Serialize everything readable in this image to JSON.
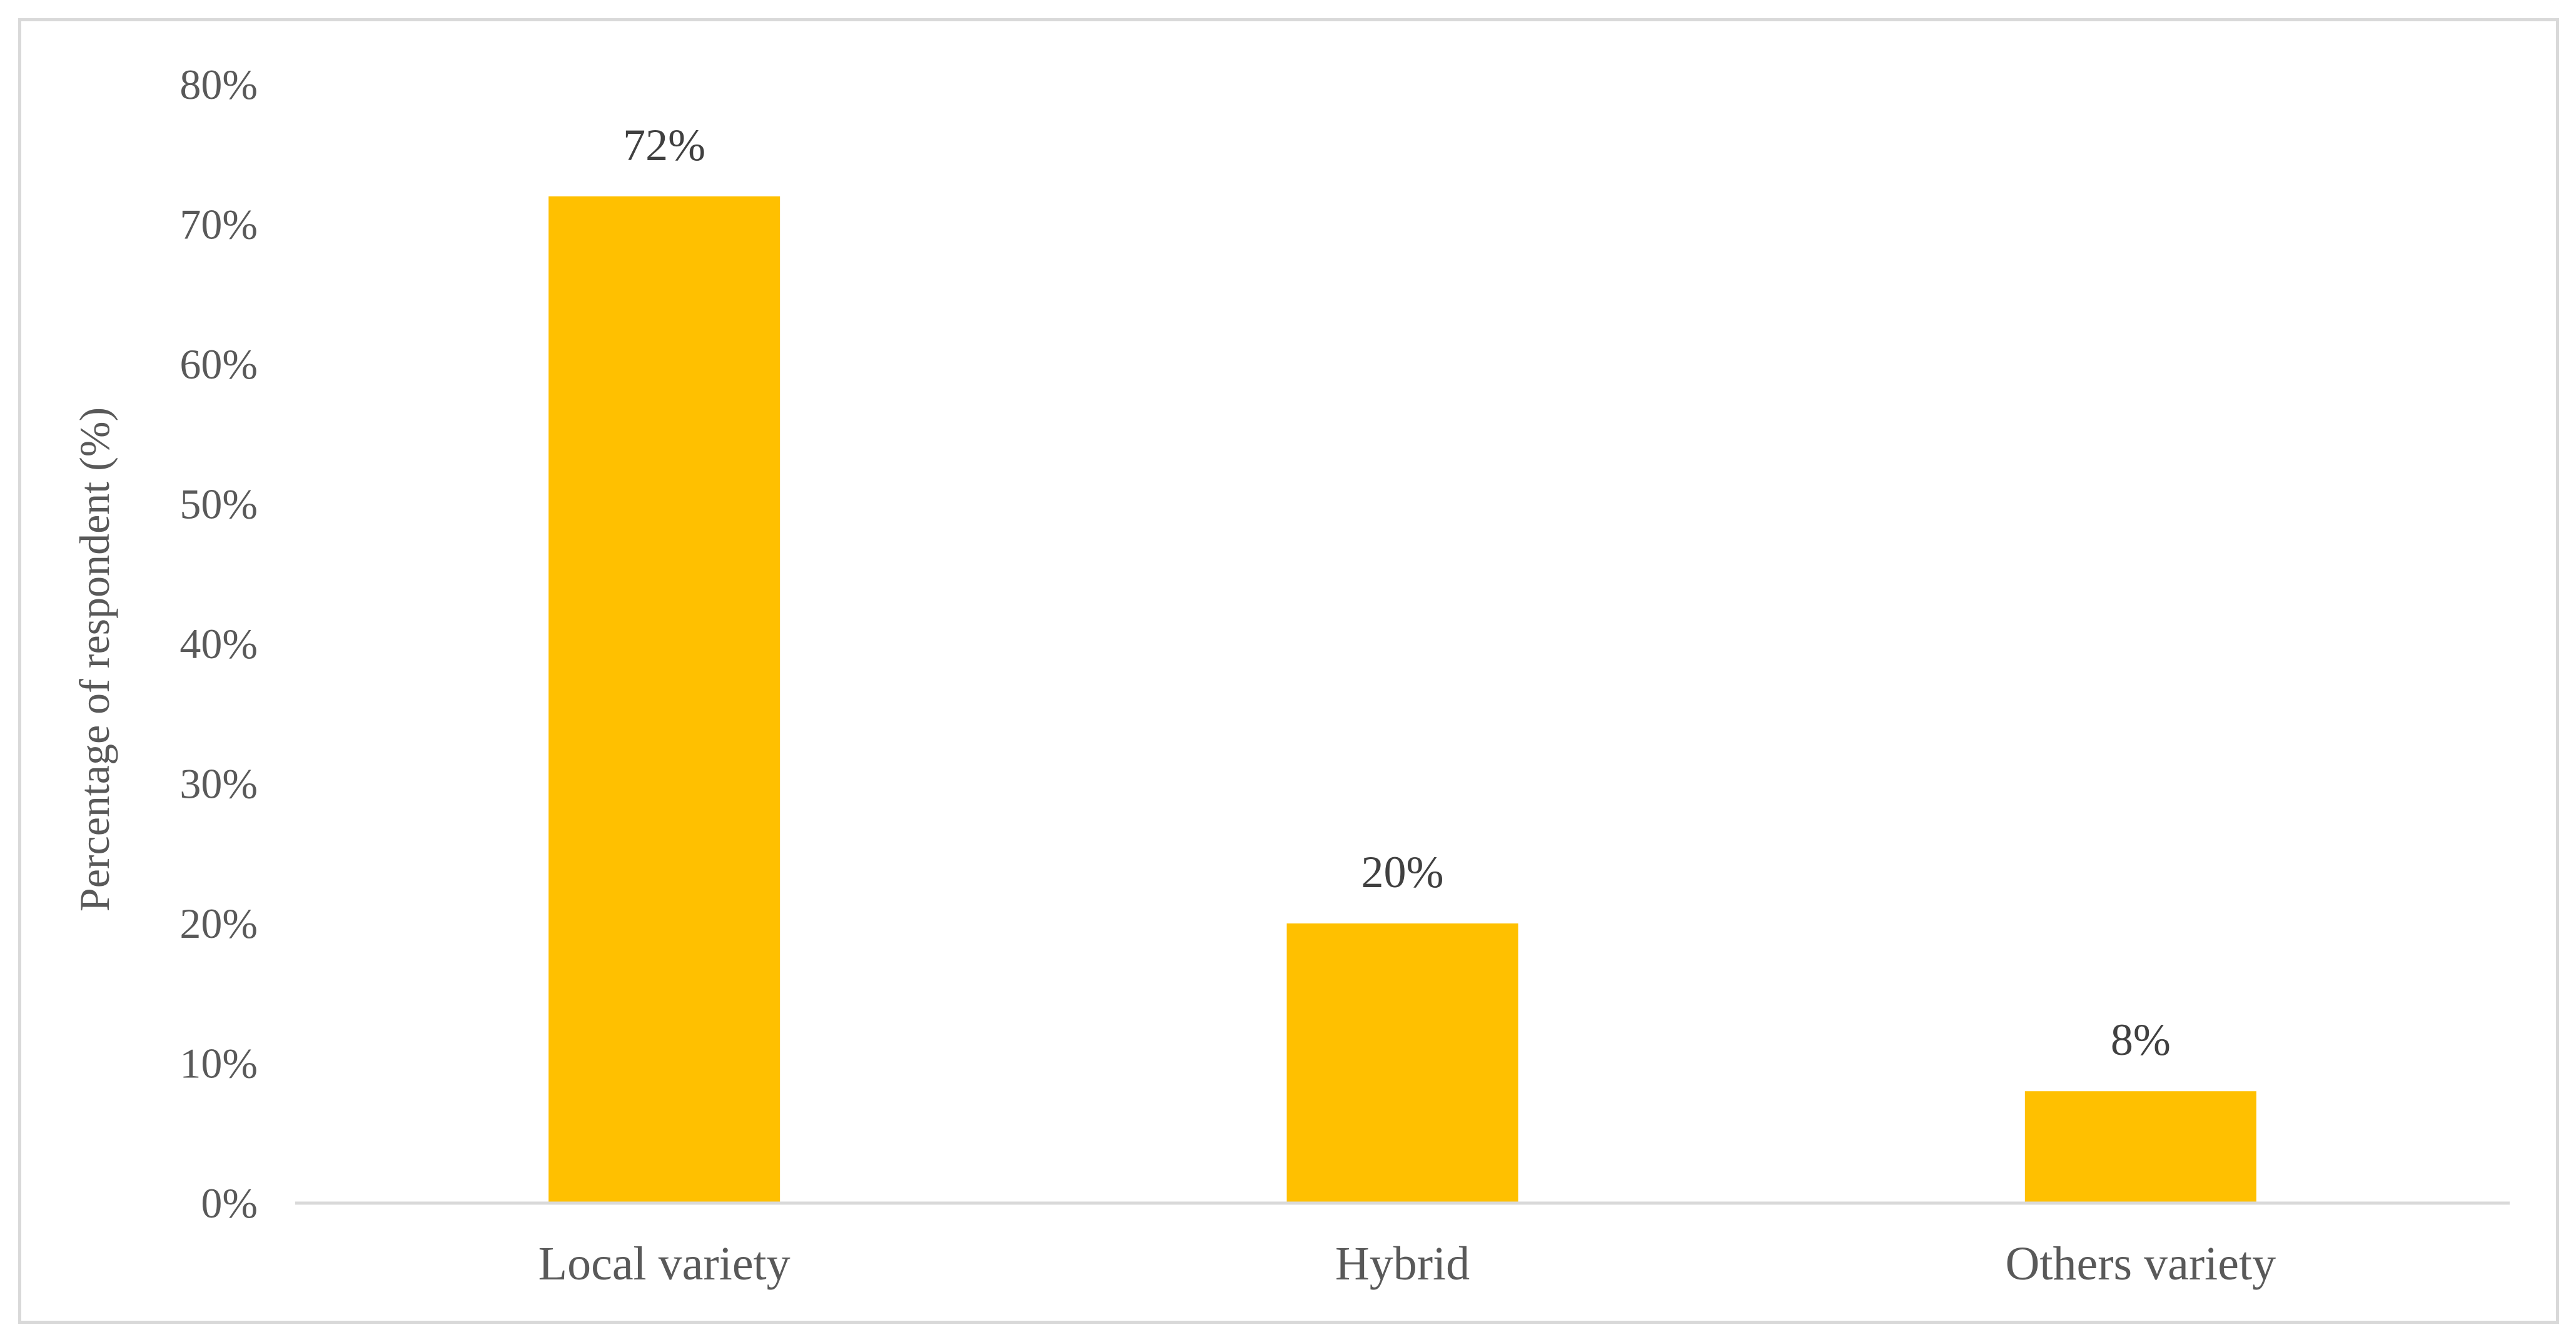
{
  "chart_data": {
    "type": "bar",
    "title": "",
    "xlabel": "",
    "ylabel": "Percentage of respondent (%)",
    "categories": [
      "Local variety",
      "Hybrid",
      "Others variety"
    ],
    "values": [
      72,
      20,
      8
    ],
    "value_labels": [
      "72%",
      "20%",
      "8%"
    ],
    "ylim": [
      0,
      80
    ],
    "yticks": [
      0,
      10,
      20,
      30,
      40,
      50,
      60,
      70,
      80
    ],
    "ytick_labels": [
      "0%",
      "10%",
      "20%",
      "30%",
      "40%",
      "50%",
      "60%",
      "70%",
      "80%"
    ],
    "grid": false,
    "legend": "none",
    "bar_color": "#FFC000",
    "axis_color": "#d9d9d9",
    "text_color": "#595959"
  }
}
